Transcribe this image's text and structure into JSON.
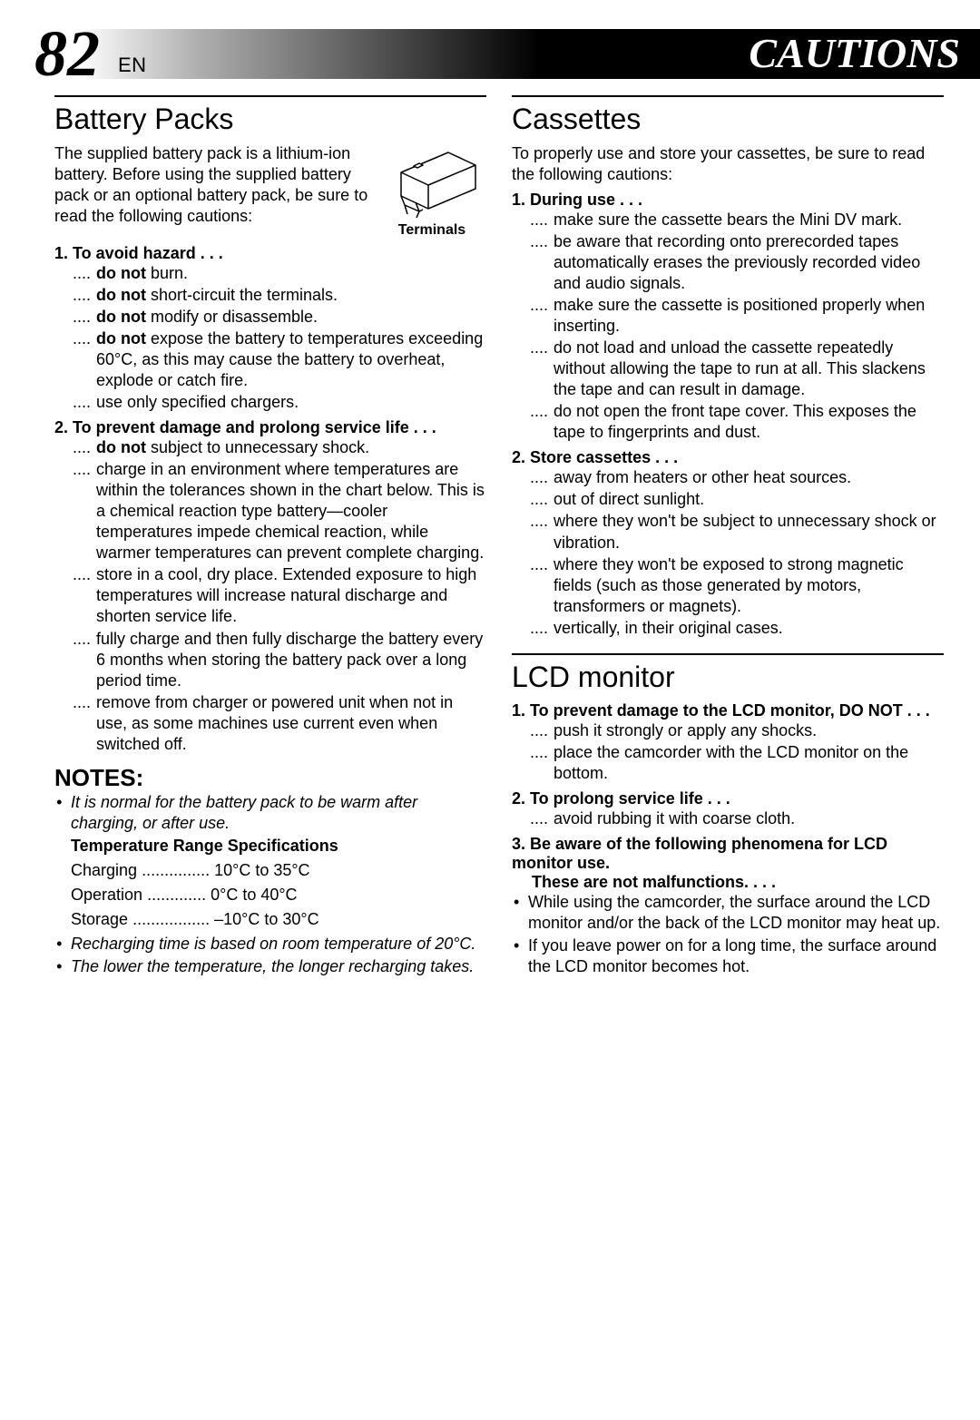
{
  "header": {
    "page_number": "82",
    "lang": "EN",
    "title": "CAUTIONS"
  },
  "left": {
    "battery": {
      "heading": "Battery Packs",
      "intro": "The supplied battery pack is a lithium-ion battery. Before using the supplied battery pack or an optional battery pack, be sure to read the following cautions:",
      "fig_caption": "Terminals",
      "sec1_title": "1. To avoid hazard . . .",
      "sec1_items": [
        "<b>do not</b> burn.",
        "<b>do not</b> short-circuit the terminals.",
        "<b>do not</b> modify or disassemble.",
        "<b>do not</b> expose the battery to temperatures exceeding 60°C, as this may cause the battery to overheat, explode or catch fire.",
        "use only specified chargers."
      ],
      "sec2_title": "2. To prevent damage and prolong service life . . .",
      "sec2_items": [
        "<b>do not</b> subject to unnecessary shock.",
        "charge in an environment where temperatures are within the tolerances shown in the chart below. This is a chemical reaction type battery—cooler temperatures impede chemical reaction, while warmer temperatures can prevent complete charging.",
        "store in a cool, dry place. Extended exposure to high temperatures will increase natural discharge and shorten service life.",
        "fully charge and then fully discharge the battery every 6 months when storing the battery pack over a long period time.",
        "remove from charger or powered unit when not in use, as some machines use current even when switched off."
      ]
    },
    "notes": {
      "heading": "NOTES:",
      "n1": "It is normal for the battery pack to be warm after charging, or after use.",
      "temp_title": "Temperature Range Specifications",
      "charging_label": "Charging",
      "charging_val": "10°C to 35°C",
      "operation_label": "Operation",
      "operation_val": "0°C to 40°C",
      "storage_label": "Storage",
      "storage_val": "–10°C to 30°C",
      "n2": "Recharging time is based on room temperature of 20°C.",
      "n3": "The lower the temperature, the longer recharging takes."
    }
  },
  "right": {
    "cassettes": {
      "heading": "Cassettes",
      "intro": "To properly use and store your cassettes, be sure to read the following cautions:",
      "sec1_title": "1. During use . . .",
      "sec1_items": [
        "make sure the cassette bears the Mini DV mark.",
        "be aware that recording onto prerecorded tapes automatically erases the previously recorded video and audio signals.",
        "make sure the cassette is positioned properly when inserting.",
        "do not load and unload the cassette repeatedly without allowing the tape to run at all. This slackens the tape and can result in damage.",
        "do not open the front tape cover. This exposes the tape to fingerprints and dust."
      ],
      "sec2_title": "2. Store cassettes . . .",
      "sec2_items": [
        "away from heaters or other heat sources.",
        "out of direct sunlight.",
        "where they won't be subject to unnecessary shock or vibration.",
        "where they won't be exposed to strong magnetic fields (such as those generated by motors, transformers or magnets).",
        "vertically, in their original cases."
      ]
    },
    "lcd": {
      "heading": "LCD monitor",
      "sec1_title": "1. To prevent damage to the LCD monitor, DO NOT . . .",
      "sec1_items": [
        "push it strongly or apply any shocks.",
        "place the camcorder with the LCD monitor on the bottom."
      ],
      "sec2_title": "2. To prolong service life . . .",
      "sec2_items": [
        "avoid rubbing it with coarse cloth."
      ],
      "sec3_title": "3. Be aware of the following phenomena for LCD monitor use.",
      "sec3_sub": "These are not malfunctions. . . .",
      "sec3_bullets": [
        "While using the camcorder, the surface around the LCD monitor and/or the back of the LCD monitor may heat up.",
        "If you leave power on for a long time, the surface around the LCD monitor becomes hot."
      ]
    }
  }
}
